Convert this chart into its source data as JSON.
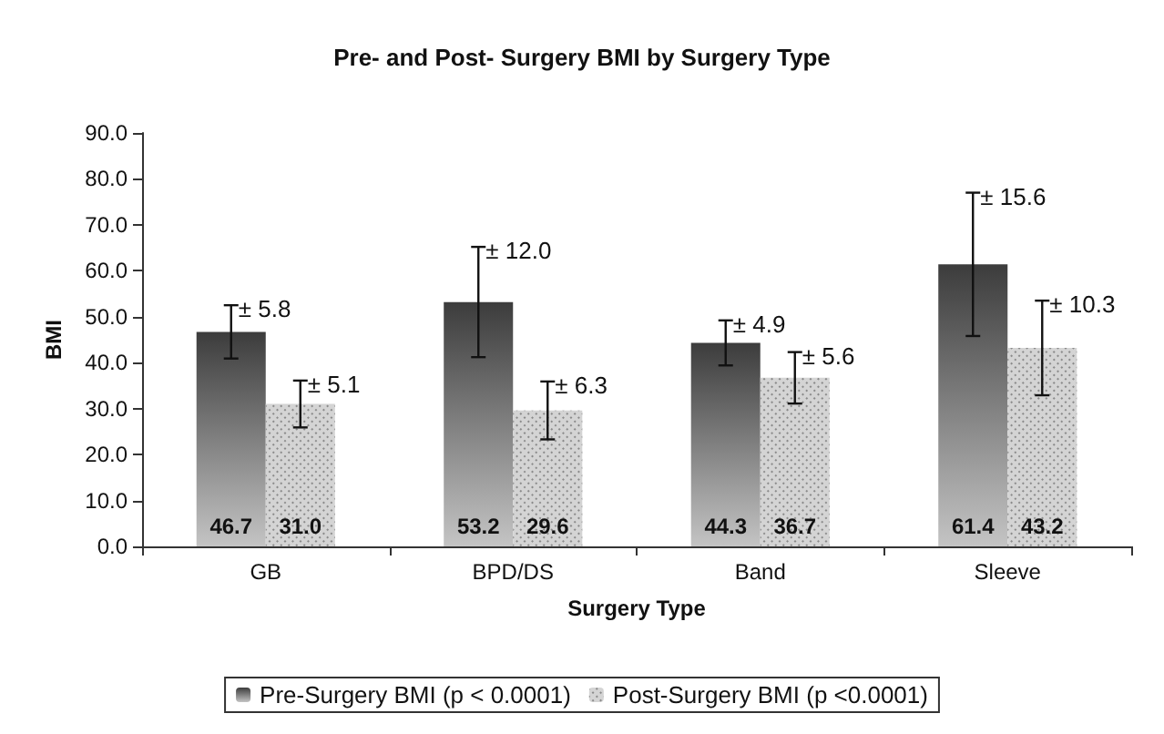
{
  "chart_data": {
    "type": "bar",
    "title": "Pre- and Post- Surgery BMI by Surgery Type",
    "xlabel": "Surgery Type",
    "ylabel": "BMI",
    "categories": [
      "GB",
      "BPD/DS",
      "Band",
      "Sleeve"
    ],
    "series": [
      {
        "name": "Pre-Surgery BMI (p < 0.0001)",
        "color": "#3c3c3c",
        "values": [
          46.7,
          53.2,
          44.3,
          61.4
        ],
        "value_labels": [
          "46.7",
          "53.2",
          "44.3",
          "61.4"
        ],
        "errors": [
          5.8,
          12.0,
          4.9,
          15.6
        ]
      },
      {
        "name": "Post-Surgery BMI (p <0.0001)",
        "color": "#d4d4d4",
        "values": [
          31.0,
          29.6,
          36.7,
          43.2
        ],
        "value_labels": [
          "31.0",
          "29.6",
          "36.7",
          "43.2"
        ],
        "errors": [
          5.1,
          6.3,
          5.6,
          10.3
        ]
      }
    ],
    "ylim": [
      0,
      90
    ],
    "yticks": [
      {
        "value": 0,
        "label": "0.0"
      },
      {
        "value": 10,
        "label": "10.0"
      },
      {
        "value": 20,
        "label": "20.0"
      },
      {
        "value": 30,
        "label": "30.0"
      },
      {
        "value": 40,
        "label": "40.0"
      },
      {
        "value": 50,
        "label": "50.0"
      },
      {
        "value": 60,
        "label": "60.0"
      },
      {
        "value": 70,
        "label": "70.0"
      },
      {
        "value": 80,
        "label": "80.0"
      },
      {
        "value": 90,
        "label": "90.0"
      }
    ],
    "legend": "bottom",
    "annotations": [
      "± 5.8",
      "± 5.1",
      "± 12.0",
      "± 6.3",
      "± 4.9",
      "± 5.6",
      "± 15.6",
      "± 10.3"
    ]
  }
}
